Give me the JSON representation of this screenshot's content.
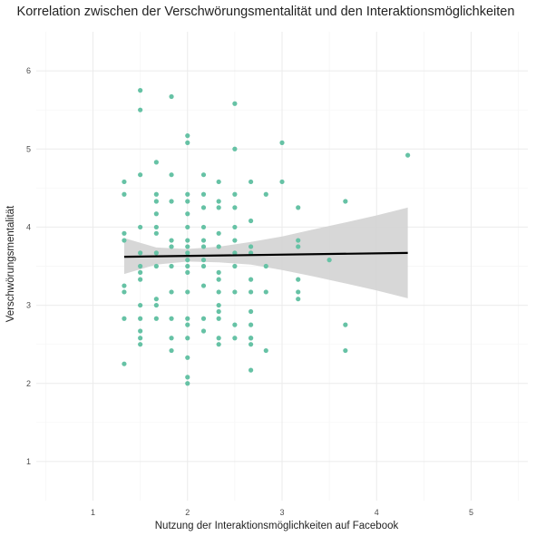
{
  "chart_data": {
    "type": "scatter",
    "title": "Korrelation zwischen der Verschwörungsmentalität und den Interaktionsmöglichkeiten",
    "xlabel": "Nutzung der Interaktionsmöglichkeiten auf Facebook",
    "ylabel": "Verschwörungsmentalität",
    "xlim": [
      0.4,
      5.6
    ],
    "ylim": [
      0.5,
      6.5
    ],
    "x_ticks": [
      "1",
      "2",
      "3",
      "4",
      "5"
    ],
    "y_ticks": [
      "1",
      "2",
      "3",
      "4",
      "5",
      "6"
    ],
    "grid": true,
    "legend": "none",
    "point_color": "#66c2a5",
    "line_color": "#000000",
    "band_color": "#d3d3d3",
    "points": [
      [
        1.33,
        4.58
      ],
      [
        1.33,
        4.42
      ],
      [
        1.33,
        3.92
      ],
      [
        1.33,
        3.83
      ],
      [
        1.33,
        3.25
      ],
      [
        1.33,
        3.17
      ],
      [
        1.33,
        2.83
      ],
      [
        1.33,
        2.25
      ],
      [
        1.5,
        5.75
      ],
      [
        1.5,
        5.5
      ],
      [
        1.5,
        4.67
      ],
      [
        1.5,
        4.0
      ],
      [
        1.5,
        3.67
      ],
      [
        1.5,
        3.5
      ],
      [
        1.5,
        3.42
      ],
      [
        1.5,
        3.33
      ],
      [
        1.5,
        3.0
      ],
      [
        1.5,
        2.83
      ],
      [
        1.5,
        2.67
      ],
      [
        1.5,
        2.58
      ],
      [
        1.5,
        2.5
      ],
      [
        1.67,
        4.83
      ],
      [
        1.67,
        4.42
      ],
      [
        1.67,
        4.33
      ],
      [
        1.67,
        4.17
      ],
      [
        1.67,
        4.0
      ],
      [
        1.67,
        3.92
      ],
      [
        1.67,
        3.67
      ],
      [
        1.67,
        3.5
      ],
      [
        1.67,
        3.08
      ],
      [
        1.67,
        3.0
      ],
      [
        1.67,
        2.83
      ],
      [
        1.83,
        5.67
      ],
      [
        1.83,
        4.67
      ],
      [
        1.83,
        4.33
      ],
      [
        1.83,
        3.83
      ],
      [
        1.83,
        3.75
      ],
      [
        1.83,
        3.5
      ],
      [
        1.83,
        3.17
      ],
      [
        1.83,
        2.83
      ],
      [
        1.83,
        2.58
      ],
      [
        1.83,
        2.42
      ],
      [
        2.0,
        5.17
      ],
      [
        2.0,
        5.08
      ],
      [
        2.0,
        4.42
      ],
      [
        2.0,
        4.33
      ],
      [
        2.0,
        4.17
      ],
      [
        2.0,
        4.0
      ],
      [
        2.0,
        3.83
      ],
      [
        2.0,
        3.75
      ],
      [
        2.0,
        3.67
      ],
      [
        2.0,
        3.58
      ],
      [
        2.0,
        3.5
      ],
      [
        2.0,
        3.42
      ],
      [
        2.0,
        3.17
      ],
      [
        2.0,
        2.83
      ],
      [
        2.0,
        2.75
      ],
      [
        2.0,
        2.58
      ],
      [
        2.0,
        2.33
      ],
      [
        2.0,
        2.08
      ],
      [
        2.0,
        2.0
      ],
      [
        2.17,
        4.67
      ],
      [
        2.17,
        4.42
      ],
      [
        2.17,
        4.25
      ],
      [
        2.17,
        4.0
      ],
      [
        2.17,
        3.83
      ],
      [
        2.17,
        3.75
      ],
      [
        2.17,
        3.58
      ],
      [
        2.17,
        3.5
      ],
      [
        2.17,
        3.25
      ],
      [
        2.17,
        2.83
      ],
      [
        2.17,
        2.67
      ],
      [
        2.33,
        4.58
      ],
      [
        2.33,
        4.33
      ],
      [
        2.33,
        4.25
      ],
      [
        2.33,
        3.92
      ],
      [
        2.33,
        3.75
      ],
      [
        2.33,
        3.42
      ],
      [
        2.33,
        3.33
      ],
      [
        2.33,
        3.17
      ],
      [
        2.33,
        3.0
      ],
      [
        2.33,
        2.92
      ],
      [
        2.33,
        2.83
      ],
      [
        2.33,
        2.58
      ],
      [
        2.33,
        2.5
      ],
      [
        2.5,
        4.42
      ],
      [
        2.5,
        4.25
      ],
      [
        2.5,
        4.0
      ],
      [
        2.5,
        3.83
      ],
      [
        2.5,
        3.67
      ],
      [
        2.5,
        3.5
      ],
      [
        2.5,
        3.17
      ],
      [
        2.5,
        2.75
      ],
      [
        2.5,
        2.58
      ],
      [
        2.67,
        4.58
      ],
      [
        2.67,
        4.08
      ],
      [
        2.67,
        3.75
      ],
      [
        2.67,
        3.67
      ],
      [
        2.67,
        3.33
      ],
      [
        2.67,
        3.17
      ],
      [
        2.67,
        2.92
      ],
      [
        2.67,
        2.75
      ],
      [
        2.67,
        2.58
      ],
      [
        2.67,
        2.5
      ],
      [
        2.5,
        5.58
      ],
      [
        2.5,
        5.0
      ],
      [
        2.83,
        4.42
      ],
      [
        2.83,
        3.5
      ],
      [
        2.83,
        3.17
      ],
      [
        2.83,
        2.42
      ],
      [
        2.67,
        2.58
      ],
      [
        2.67,
        2.17
      ],
      [
        3.0,
        5.08
      ],
      [
        3.0,
        4.58
      ],
      [
        3.17,
        4.25
      ],
      [
        3.17,
        3.83
      ],
      [
        3.17,
        3.75
      ],
      [
        3.17,
        3.33
      ],
      [
        3.17,
        3.08
      ],
      [
        3.17,
        3.17
      ],
      [
        3.5,
        3.58
      ],
      [
        3.67,
        4.33
      ],
      [
        3.67,
        2.75
      ],
      [
        3.67,
        2.42
      ],
      [
        4.33,
        4.92
      ]
    ],
    "regression": {
      "x": [
        1.33,
        4.33
      ],
      "y": [
        3.62,
        3.67
      ]
    },
    "confidence_band": {
      "x": [
        1.33,
        1.67,
        2.0,
        2.33,
        2.67,
        3.0,
        3.33,
        3.67,
        4.0,
        4.33
      ],
      "lower": [
        3.4,
        3.52,
        3.56,
        3.55,
        3.52,
        3.45,
        3.37,
        3.28,
        3.19,
        3.09
      ],
      "upper": [
        3.86,
        3.74,
        3.72,
        3.75,
        3.81,
        3.88,
        3.97,
        4.06,
        4.15,
        4.25
      ]
    }
  }
}
